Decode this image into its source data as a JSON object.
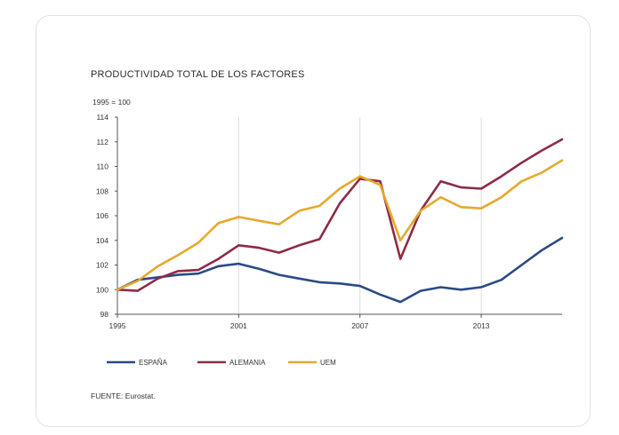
{
  "chart_data": {
    "type": "line",
    "title": "PRODUCTIVIDAD TOTAL DE LOS FACTORES",
    "unit_label": "1995 = 100",
    "source": "FUENTE: Eurostat.",
    "xlim": [
      1995,
      2017
    ],
    "ylim": [
      98,
      114
    ],
    "yticks": [
      98,
      100,
      102,
      104,
      106,
      108,
      110,
      112,
      114
    ],
    "xticks": [
      1995,
      2001,
      2007,
      2013
    ],
    "x": [
      1995,
      1996,
      1997,
      1998,
      1999,
      2000,
      2001,
      2002,
      2003,
      2004,
      2005,
      2006,
      2007,
      2008,
      2009,
      2010,
      2011,
      2012,
      2013,
      2014,
      2015,
      2016,
      2017
    ],
    "series": [
      {
        "name": "ESPAÑA",
        "color": "#2a4a86",
        "values": [
          100,
          100.8,
          101.0,
          101.2,
          101.3,
          101.9,
          102.1,
          101.7,
          101.2,
          100.9,
          100.6,
          100.5,
          100.3,
          99.6,
          99.0,
          99.9,
          100.2,
          100.0,
          100.2,
          100.8,
          102.0,
          103.2,
          104.2
        ]
      },
      {
        "name": "ALEMANIA",
        "color": "#8e2b45",
        "values": [
          100,
          99.9,
          100.9,
          101.5,
          101.6,
          102.5,
          103.6,
          103.4,
          103.0,
          103.6,
          104.1,
          107.0,
          109.0,
          108.8,
          102.5,
          106.4,
          108.8,
          108.3,
          108.2,
          109.2,
          110.3,
          111.3,
          112.2
        ]
      },
      {
        "name": "UEM",
        "color": "#e5a92c",
        "values": [
          100,
          100.7,
          101.9,
          102.8,
          103.8,
          105.4,
          105.9,
          105.6,
          105.3,
          106.4,
          106.8,
          108.2,
          109.2,
          108.5,
          104.0,
          106.4,
          107.5,
          106.7,
          106.6,
          107.5,
          108.8,
          109.5,
          110.5
        ]
      }
    ]
  }
}
